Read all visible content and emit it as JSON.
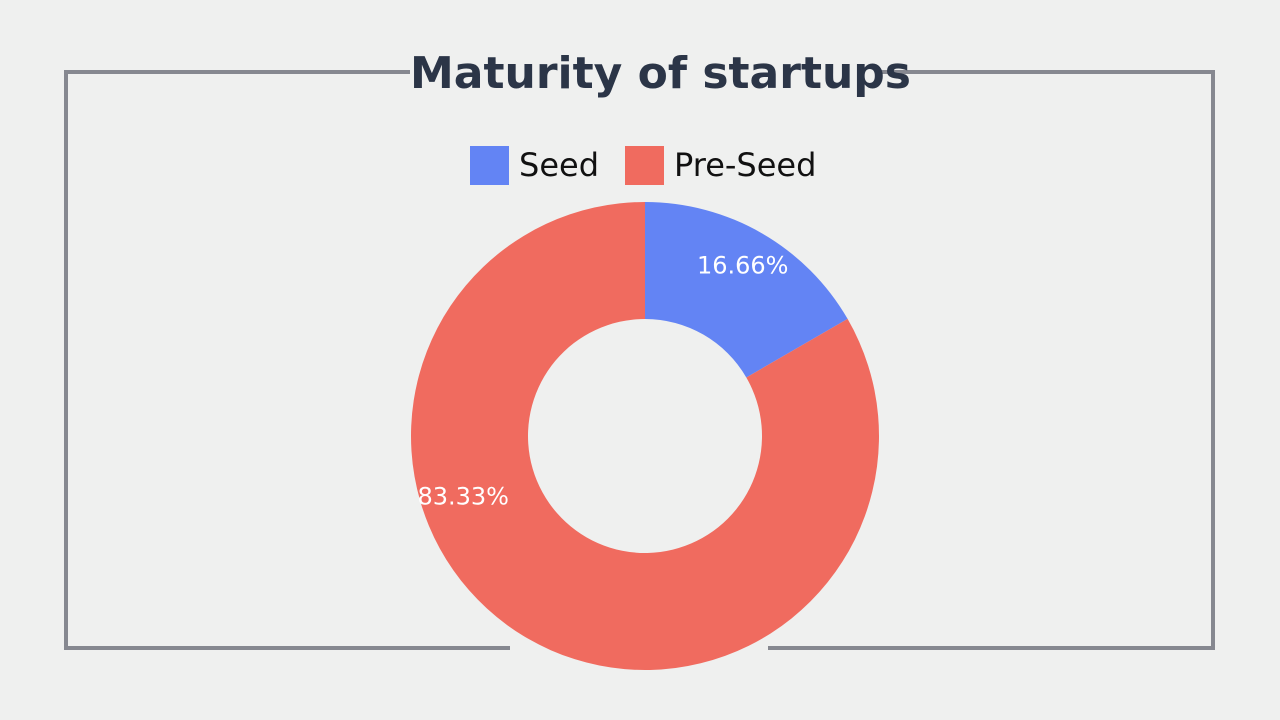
{
  "chart_data": {
    "type": "pie",
    "title": "Maturity of startups",
    "categories": [
      "Seed",
      "Pre-Seed"
    ],
    "values": [
      16.66,
      83.33
    ],
    "labels": [
      "16.66%",
      "83.33%"
    ],
    "colors": [
      "#6384f4",
      "#f06b5f"
    ],
    "legend_position": "top-center",
    "hole": "donut"
  }
}
